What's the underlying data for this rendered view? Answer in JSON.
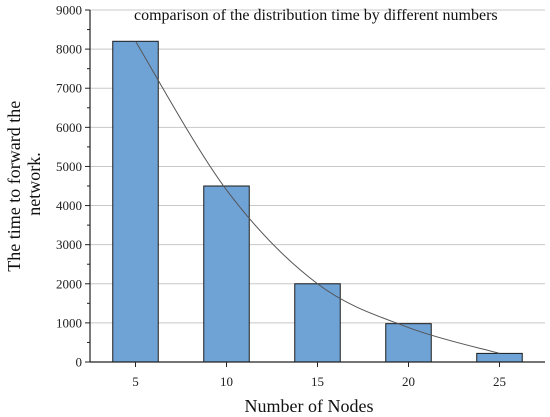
{
  "chart_data": {
    "type": "bar",
    "title": "comparison of the distribution time by different numbers",
    "xlabel": "Number of Nodes",
    "ylabel": [
      "The time to forward the",
      "network."
    ],
    "categories": [
      "5",
      "10",
      "15",
      "20",
      "25"
    ],
    "values": [
      8200,
      4500,
      2000,
      980,
      220
    ],
    "trendline": {
      "type": "line",
      "values": [
        8200,
        4400,
        2000,
        880,
        220
      ]
    },
    "ylim": [
      0,
      9000
    ],
    "yticks": [
      "0",
      "1000",
      "2000",
      "3000",
      "4000",
      "5000",
      "6000",
      "7000",
      "8000",
      "9000"
    ],
    "grid": "horizontal",
    "bar_color": "#6fa3d6",
    "bar_edge_color": "#1a1a1a",
    "line_color": "#555555"
  }
}
